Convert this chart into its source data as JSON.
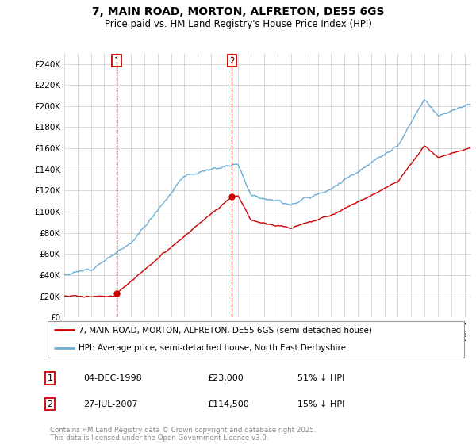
{
  "title": "7, MAIN ROAD, MORTON, ALFRETON, DE55 6GS",
  "subtitle": "Price paid vs. HM Land Registry's House Price Index (HPI)",
  "legend_line1": "7, MAIN ROAD, MORTON, ALFRETON, DE55 6GS (semi-detached house)",
  "legend_line2": "HPI: Average price, semi-detached house, North East Derbyshire",
  "sale1_date": "04-DEC-1998",
  "sale1_price": "£23,000",
  "sale1_hpi": "51% ↓ HPI",
  "sale2_date": "27-JUL-2007",
  "sale2_price": "£114,500",
  "sale2_hpi": "15% ↓ HPI",
  "sale1_year": 1998.92,
  "sale1_value": 23000,
  "sale2_year": 2007.57,
  "sale2_value": 114500,
  "ylim": [
    0,
    250000
  ],
  "yticks": [
    0,
    20000,
    40000,
    60000,
    80000,
    100000,
    120000,
    140000,
    160000,
    180000,
    200000,
    220000,
    240000
  ],
  "ylabel_fmt": [
    "£0",
    "£20K",
    "£40K",
    "£60K",
    "£80K",
    "£100K",
    "£120K",
    "£140K",
    "£160K",
    "£180K",
    "£200K",
    "£220K",
    "£240K"
  ],
  "hpi_color": "#6baed6",
  "price_color": "#cc0000",
  "background_color": "#ffffff",
  "grid_color": "#cccccc",
  "footer": "Contains HM Land Registry data © Crown copyright and database right 2025.\nThis data is licensed under the Open Government Licence v3.0.",
  "copyright_color": "#888888",
  "xlim_left": 1995,
  "xlim_right": 2025.5
}
